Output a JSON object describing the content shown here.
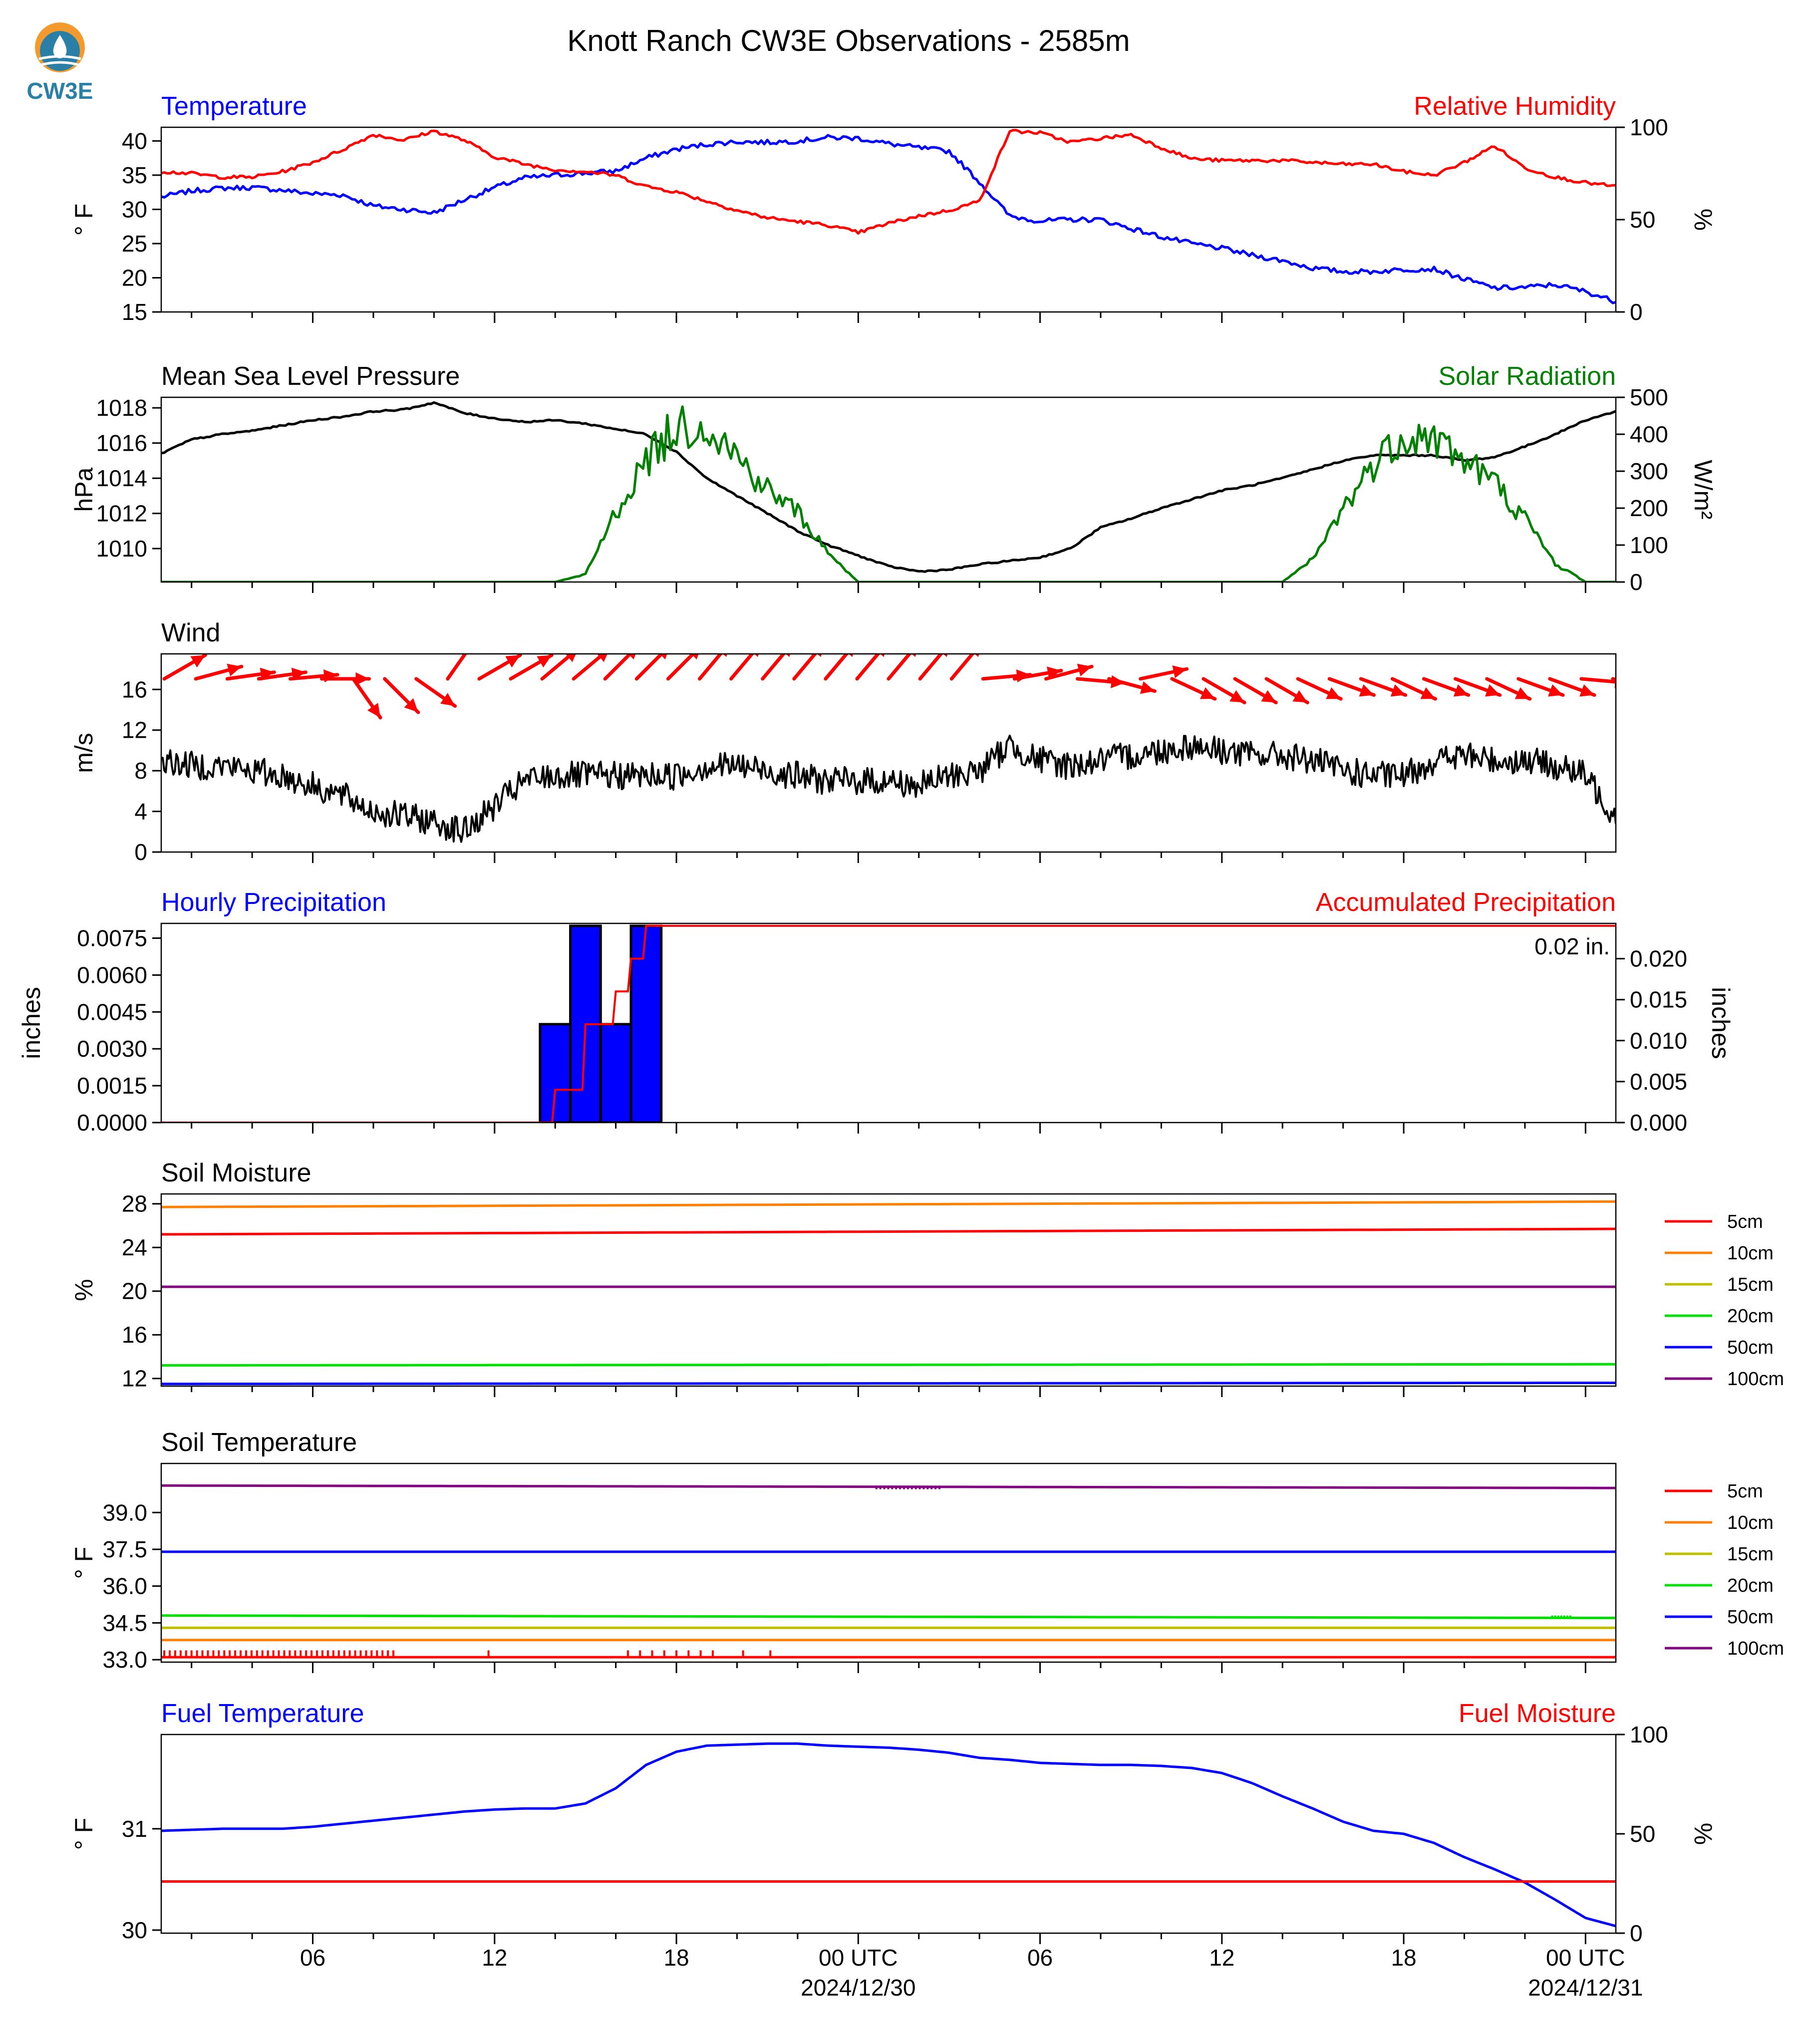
{
  "page": {
    "title": "Knott Ranch CW3E Observations - 2585m",
    "logo_text": "CW3E",
    "colors": {
      "blue": "#0000ff",
      "red": "#ff0000",
      "green": "#008000",
      "black": "#000000",
      "logo": "#2a7fa6",
      "logo_sun": "#f29a2e"
    }
  },
  "x_axis": {
    "range_hours": [
      0,
      48
    ],
    "ticks": [
      {
        "h": 5,
        "label": "06"
      },
      {
        "h": 11,
        "label": "12"
      },
      {
        "h": 17,
        "label": "18"
      },
      {
        "h": 23,
        "label": "00 UTC",
        "sub": "2024/12/30"
      },
      {
        "h": 29,
        "label": "06"
      },
      {
        "h": 35,
        "label": "12"
      },
      {
        "h": 41,
        "label": "18"
      },
      {
        "h": 47,
        "label": "00 UTC",
        "sub": "2024/12/31"
      }
    ]
  },
  "chart_data": [
    {
      "type": "line",
      "title": "Temperature",
      "title_right": "Relative Humidity",
      "ylabel": "° F",
      "ylabel_right": "%",
      "ylim": [
        15,
        42
      ],
      "ylim_right": [
        0,
        100
      ],
      "yticks": [
        "15",
        "20",
        "25",
        "30",
        "35",
        "40"
      ],
      "yticks_right": [
        "0",
        "50",
        "100"
      ],
      "x": [
        0,
        1,
        2,
        3,
        4,
        5,
        6,
        7,
        8,
        9,
        10,
        11,
        12,
        13,
        14,
        15,
        16,
        17,
        18,
        19,
        20,
        21,
        22,
        23,
        24,
        25,
        26,
        27,
        28,
        29,
        30,
        31,
        32,
        33,
        34,
        35,
        36,
        37,
        38,
        39,
        40,
        41,
        42,
        43,
        44,
        45,
        46,
        47,
        48
      ],
      "series": [
        {
          "name": "Temperature",
          "color": "#0000ff",
          "axis": "left",
          "values": [
            31.8,
            32.7,
            33.1,
            33.2,
            32.8,
            32.3,
            32.1,
            30.5,
            30.0,
            29.5,
            31.4,
            33.2,
            34.6,
            35.0,
            35.3,
            35.6,
            37.5,
            38.8,
            39.5,
            39.9,
            39.8,
            40.0,
            40.5,
            40.4,
            39.6,
            39.0,
            38.5,
            34.0,
            29.0,
            28.3,
            28.5,
            28.5,
            27.2,
            26.0,
            25.0,
            24.3,
            23.3,
            22.5,
            21.4,
            20.9,
            20.9,
            21.2,
            21.3,
            19.8,
            18.5,
            18.6,
            19.0,
            18.0,
            16.5
          ]
        },
        {
          "name": "Relative Humidity",
          "color": "#ff0000",
          "axis": "right",
          "values": [
            76,
            75,
            73,
            73,
            76,
            81,
            88,
            96,
            93,
            98,
            93,
            84,
            80,
            77,
            76,
            74,
            68,
            65,
            60,
            55,
            51,
            49,
            47,
            43,
            48,
            52,
            55,
            60,
            98,
            97,
            92,
            94,
            96,
            89,
            83,
            82,
            82,
            82,
            81,
            80,
            80,
            76,
            74,
            81,
            90,
            78,
            73,
            70,
            68
          ]
        }
      ]
    },
    {
      "type": "line",
      "title": "Mean Sea Level Pressure",
      "title_right": "Solar Radiation",
      "ylabel": "hPa",
      "ylabel_right": "W/m²",
      "ylim": [
        1008.1,
        1018.6
      ],
      "ylim_right": [
        0,
        500
      ],
      "yticks": [
        "1010",
        "1012",
        "1014",
        "1016",
        "1018"
      ],
      "yticks_right": [
        "0",
        "100",
        "200",
        "300",
        "400",
        "500"
      ],
      "x": [
        0,
        1,
        2,
        3,
        4,
        5,
        6,
        7,
        8,
        9,
        10,
        11,
        12,
        13,
        14,
        15,
        16,
        17,
        18,
        19,
        20,
        21,
        22,
        23,
        24,
        25,
        26,
        27,
        28,
        29,
        30,
        31,
        32,
        33,
        34,
        35,
        36,
        37,
        38,
        39,
        40,
        41,
        42,
        43,
        44,
        45,
        46,
        47,
        48
      ],
      "series": [
        {
          "name": "Mean Sea Level Pressure",
          "color": "#000000",
          "axis": "left",
          "values": [
            1015.4,
            1016.2,
            1016.5,
            1016.7,
            1017.0,
            1017.3,
            1017.5,
            1017.8,
            1017.9,
            1018.3,
            1017.7,
            1017.4,
            1017.2,
            1017.3,
            1017.1,
            1016.8,
            1016.5,
            1015.5,
            1014.0,
            1013.0,
            1012.0,
            1011.0,
            1010.2,
            1009.6,
            1009.0,
            1008.7,
            1008.8,
            1009.1,
            1009.3,
            1009.5,
            1010.0,
            1011.2,
            1011.7,
            1012.3,
            1012.8,
            1013.3,
            1013.6,
            1014.0,
            1014.5,
            1015.0,
            1015.3,
            1015.3,
            1015.3,
            1015.0,
            1015.2,
            1015.8,
            1016.5,
            1017.3,
            1017.8
          ]
        },
        {
          "name": "Solar Radiation",
          "color": "#008000",
          "axis": "right",
          "values": [
            0,
            0,
            0,
            0,
            0,
            0,
            0,
            0,
            0,
            0,
            0,
            0,
            0,
            0,
            20,
            190,
            330,
            420,
            430,
            340,
            250,
            190,
            80,
            0,
            0,
            0,
            0,
            0,
            0,
            0,
            0,
            0,
            0,
            0,
            0,
            0,
            0,
            0,
            60,
            200,
            320,
            400,
            390,
            330,
            270,
            170,
            50,
            0,
            0
          ]
        }
      ]
    },
    {
      "type": "line",
      "title": "Wind",
      "ylabel": "m/s",
      "ylim": [
        0,
        19.5
      ],
      "yticks": [
        "0",
        "4",
        "8",
        "12",
        "16"
      ],
      "x": [
        0,
        1,
        2,
        3,
        4,
        5,
        6,
        7,
        8,
        9,
        10,
        11,
        12,
        13,
        14,
        15,
        16,
        17,
        18,
        19,
        20,
        21,
        22,
        23,
        24,
        25,
        26,
        27,
        28,
        29,
        30,
        31,
        32,
        33,
        34,
        35,
        36,
        37,
        38,
        39,
        40,
        41,
        42,
        43,
        44,
        45,
        46,
        47,
        48
      ],
      "series": [
        {
          "name": "Wind speed",
          "color": "#000000",
          "axis": "left",
          "values": [
            9.0,
            8.5,
            8.5,
            8.0,
            7.5,
            6.5,
            5.5,
            4.0,
            3.5,
            3.0,
            2.0,
            4.5,
            7.0,
            7.5,
            7.5,
            7.5,
            7.5,
            7.5,
            8.5,
            8.5,
            8.0,
            7.5,
            7.0,
            7.0,
            7.0,
            6.5,
            7.5,
            8.0,
            10.5,
            9.0,
            8.5,
            9.0,
            9.5,
            10.0,
            10.5,
            10.0,
            9.5,
            9.5,
            9.0,
            8.0,
            7.5,
            7.5,
            9.0,
            9.5,
            9.0,
            9.0,
            8.5,
            7.5,
            3.5
          ]
        }
      ],
      "barb_dirs_deg": [
        -30,
        -15,
        -8,
        -8,
        -5,
        0,
        55,
        45,
        35,
        -55,
        -30,
        -30,
        -40,
        -40,
        -45,
        -45,
        -45,
        -50,
        -50,
        -50,
        -50,
        -50,
        -50,
        -50,
        -50,
        -50,
        -5,
        -10,
        -15,
        5,
        15,
        -12,
        25,
        30,
        30,
        30,
        25,
        20,
        20,
        25,
        20,
        20,
        25,
        20,
        20,
        5,
        15
      ]
    },
    {
      "type": "bar",
      "title": "Hourly Precipitation",
      "title_right": "Accumulated Precipitation",
      "annotation": "0.02 in.",
      "ylabel": "inches",
      "ylabel_right": "inches",
      "ylim": [
        0,
        0.0081
      ],
      "ylim_right": [
        0,
        0.0243
      ],
      "yticks": [
        "0.0000",
        "0.0015",
        "0.0030",
        "0.0045",
        "0.0060",
        "0.0075"
      ],
      "yticks_right": [
        "0.000",
        "0.005",
        "0.010",
        "0.015",
        "0.020"
      ],
      "bars": [
        {
          "h": 12,
          "value": 0.004
        },
        {
          "h": 13,
          "value": 0.008
        },
        {
          "h": 14,
          "value": 0.004
        },
        {
          "h": 15,
          "value": 0.008
        }
      ],
      "accumulated": [
        {
          "h": 0,
          "value": 0
        },
        {
          "h": 12.9,
          "value": 0
        },
        {
          "h": 13.0,
          "value": 0.004
        },
        {
          "h": 13.9,
          "value": 0.004
        },
        {
          "h": 14.0,
          "value": 0.012
        },
        {
          "h": 14.9,
          "value": 0.012
        },
        {
          "h": 15.0,
          "value": 0.016
        },
        {
          "h": 15.4,
          "value": 0.016
        },
        {
          "h": 15.5,
          "value": 0.02
        },
        {
          "h": 15.9,
          "value": 0.02
        },
        {
          "h": 16.0,
          "value": 0.024
        },
        {
          "h": 48,
          "value": 0.024
        }
      ]
    },
    {
      "type": "line",
      "title": "Soil Moisture",
      "ylabel": "%",
      "ylim": [
        11.3,
        28.9
      ],
      "yticks": [
        "12",
        "16",
        "20",
        "24",
        "28"
      ],
      "series": [
        {
          "name": "5cm",
          "color": "#ff0000",
          "values": [
            25.2,
            25.7
          ]
        },
        {
          "name": "10cm",
          "color": "#ff8000",
          "values": [
            27.7,
            28.2
          ]
        },
        {
          "name": "15cm",
          "color": "#bfbf00",
          "values": []
        },
        {
          "name": "20cm",
          "color": "#00e000",
          "values": [
            13.2,
            13.3
          ]
        },
        {
          "name": "50cm",
          "color": "#0000ff",
          "values": [
            11.5,
            11.6
          ]
        },
        {
          "name": "100cm",
          "color": "#800080",
          "values": [
            20.4,
            20.4
          ]
        }
      ]
    },
    {
      "type": "line",
      "title": "Soil Temperature",
      "ylabel": "° F",
      "ylim": [
        32.9,
        41.0
      ],
      "yticks": [
        "33.0",
        "34.5",
        "36.0",
        "37.5",
        "39.0"
      ],
      "series": [
        {
          "name": "5cm",
          "color": "#ff0000",
          "values": [
            33.1,
            33.1
          ]
        },
        {
          "name": "10cm",
          "color": "#ff8000",
          "values": [
            33.8,
            33.8
          ]
        },
        {
          "name": "15cm",
          "color": "#bfbf00",
          "values": [
            34.3,
            34.3
          ]
        },
        {
          "name": "20cm",
          "color": "#00e000",
          "values": [
            34.8,
            34.7
          ]
        },
        {
          "name": "50cm",
          "color": "#0000ff",
          "values": [
            37.4,
            37.4
          ]
        },
        {
          "name": "100cm",
          "color": "#800080",
          "values": [
            40.1,
            40.0
          ]
        }
      ]
    },
    {
      "type": "line",
      "title": "Fuel Temperature",
      "title_right": "Fuel Moisture",
      "ylabel": "° F",
      "ylabel_right": "%",
      "ylim": [
        29.97,
        31.93
      ],
      "ylim_right": [
        0,
        100
      ],
      "yticks": [
        "30",
        "31"
      ],
      "yticks_right": [
        "0",
        "50",
        "100"
      ],
      "x": [
        0,
        1,
        2,
        3,
        4,
        5,
        6,
        7,
        8,
        9,
        10,
        11,
        12,
        13,
        14,
        15,
        16,
        17,
        18,
        19,
        20,
        21,
        22,
        23,
        24,
        25,
        26,
        27,
        28,
        29,
        30,
        31,
        32,
        33,
        34,
        35,
        36,
        37,
        38,
        39,
        40,
        41,
        42,
        43,
        44,
        45,
        46,
        47,
        48
      ],
      "series": [
        {
          "name": "Fuel Temperature",
          "color": "#0000ff",
          "axis": "left",
          "values": [
            30.98,
            30.99,
            31.0,
            31.0,
            31.0,
            31.02,
            31.05,
            31.08,
            31.11,
            31.14,
            31.17,
            31.19,
            31.2,
            31.2,
            31.25,
            31.4,
            31.63,
            31.76,
            31.82,
            31.83,
            31.84,
            31.84,
            31.82,
            31.81,
            31.8,
            31.78,
            31.75,
            31.7,
            31.68,
            31.65,
            31.64,
            31.63,
            31.63,
            31.62,
            31.6,
            31.55,
            31.45,
            31.32,
            31.2,
            31.07,
            30.98,
            30.95,
            30.86,
            30.72,
            30.6,
            30.47,
            30.3,
            30.12,
            30.04
          ]
        },
        {
          "name": "Fuel Moisture",
          "color": "#ff0000",
          "axis": "right",
          "values": [
            26,
            26,
            26,
            26,
            26,
            26,
            26,
            26,
            26,
            26,
            26,
            26,
            26,
            26,
            26,
            26,
            26,
            26,
            26,
            26,
            26,
            26,
            26,
            26,
            26,
            26,
            26,
            26,
            26,
            26,
            26,
            26,
            26,
            26,
            26,
            26,
            26,
            26,
            26,
            26,
            26,
            26,
            26,
            26,
            26,
            26,
            26,
            26,
            26
          ]
        }
      ]
    }
  ]
}
